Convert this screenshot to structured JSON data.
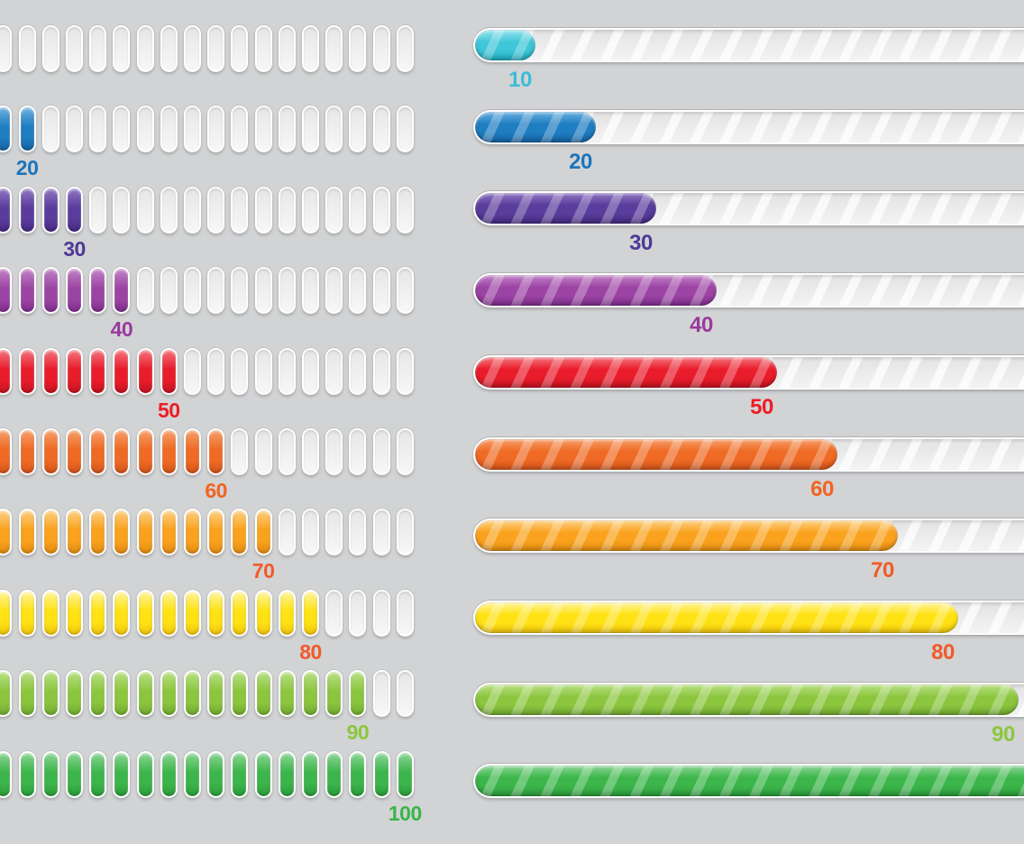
{
  "background_color": "#d2d3d4",
  "rows": [
    {
      "value": 10,
      "label": "10",
      "light": "#9ae4ee",
      "main": "#3fc6d8",
      "dark": "#1caabf",
      "label_color": "#3bbdd8"
    },
    {
      "value": 20,
      "label": "20",
      "light": "#6db1e0",
      "main": "#1f7dc2",
      "dark": "#1563a2",
      "label_color": "#1b75bc"
    },
    {
      "value": 30,
      "label": "30",
      "light": "#9077c4",
      "main": "#5a3c9c",
      "dark": "#462b82",
      "label_color": "#4d3996"
    },
    {
      "value": 40,
      "label": "40",
      "light": "#c184c6",
      "main": "#9c44a4",
      "dark": "#7f2d8d",
      "label_color": "#993a9e"
    },
    {
      "value": 50,
      "label": "50",
      "light": "#f4767e",
      "main": "#e91c2b",
      "dark": "#c41320",
      "label_color": "#ed1c24"
    },
    {
      "value": 60,
      "label": "60",
      "light": "#f6a06b",
      "main": "#ef6a24",
      "dark": "#d3541a",
      "label_color": "#f16322"
    },
    {
      "value": 70,
      "label": "70",
      "light": "#fdd084",
      "main": "#faa21d",
      "dark": "#e08c12",
      "label_color": "#f15a29"
    },
    {
      "value": 80,
      "label": "80",
      "light": "#fff49c",
      "main": "#ffe214",
      "dark": "#efc50d",
      "label_color": "#f15a29"
    },
    {
      "value": 90,
      "label": "90",
      "light": "#b9e085",
      "main": "#8cc63f",
      "dark": "#71aa30",
      "label_color": "#8cc63f"
    },
    {
      "value": 100,
      "label": "100",
      "light": "#8bd694",
      "main": "#3cb54a",
      "dark": "#2b9c3b",
      "label_color": "#39b54a"
    }
  ],
  "left_column": {
    "kind": "segmented progress bars",
    "segment_count": 20,
    "segments_per_ten_percent": 2
  },
  "right_column": {
    "kind": "striped glossy progress bars",
    "max_value": 100,
    "ring_color": "#ffffff",
    "track_color": "#ededee"
  }
}
